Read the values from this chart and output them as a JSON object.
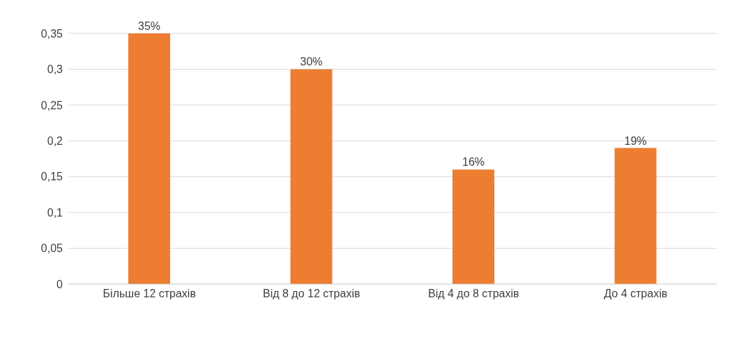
{
  "chart_data": {
    "type": "bar",
    "categories": [
      "Більше 12 страхів",
      "Від 8 до 12 страхів",
      "Від 4 до 8 страхів",
      "До 4 страхів"
    ],
    "values": [
      0.35,
      0.3,
      0.16,
      0.19
    ],
    "value_labels": [
      "35%",
      "30%",
      "16%",
      "19%"
    ],
    "color": "#ed7d31",
    "ylim": [
      0,
      0.35
    ],
    "yticks": [
      {
        "value": 0,
        "label": "0"
      },
      {
        "value": 0.05,
        "label": "0,05"
      },
      {
        "value": 0.1,
        "label": "0,1"
      },
      {
        "value": 0.15,
        "label": "0,15"
      },
      {
        "value": 0.2,
        "label": "0,2"
      },
      {
        "value": 0.25,
        "label": "0,25"
      },
      {
        "value": 0.3,
        "label": "0,3"
      },
      {
        "value": 0.35,
        "label": "0,35"
      }
    ],
    "grid": "y"
  }
}
